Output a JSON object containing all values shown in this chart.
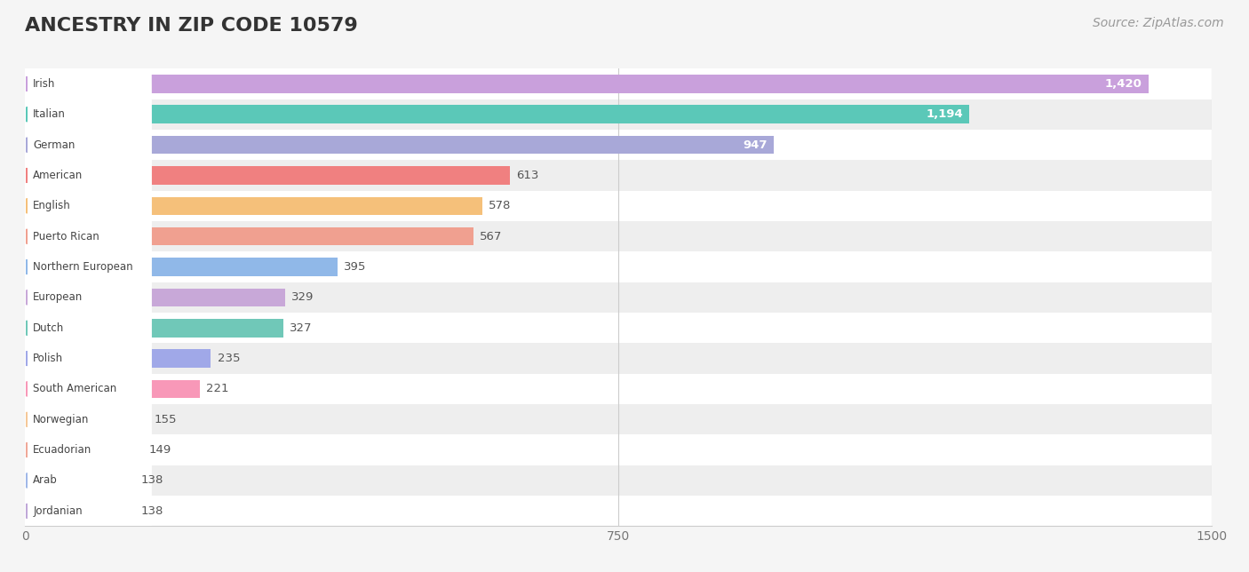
{
  "title": "ANCESTRY IN ZIP CODE 10579",
  "source": "Source: ZipAtlas.com",
  "categories": [
    "Irish",
    "Italian",
    "German",
    "American",
    "English",
    "Puerto Rican",
    "Northern European",
    "European",
    "Dutch",
    "Polish",
    "South American",
    "Norwegian",
    "Ecuadorian",
    "Arab",
    "Jordanian"
  ],
  "values": [
    1420,
    1194,
    947,
    613,
    578,
    567,
    395,
    329,
    327,
    235,
    221,
    155,
    149,
    138,
    138
  ],
  "colors": [
    "#c9a0dc",
    "#5bc8b8",
    "#a8a8d8",
    "#f08080",
    "#f5c07a",
    "#f0a090",
    "#90b8e8",
    "#c8a8d8",
    "#70c8b8",
    "#a0a8e8",
    "#f898b8",
    "#f5c898",
    "#f0a898",
    "#a0b8e8",
    "#c0a8d8"
  ],
  "xlim": [
    0,
    1500
  ],
  "xticks": [
    0,
    750,
    1500
  ],
  "background_color": "#f5f5f5",
  "title_fontsize": 16,
  "source_fontsize": 10,
  "bar_height": 0.6,
  "label_inside_threshold": 900
}
